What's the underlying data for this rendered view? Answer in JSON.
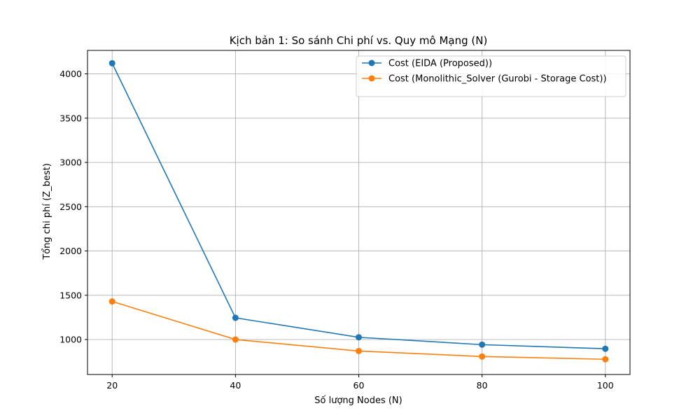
{
  "chart_data": {
    "type": "line",
    "title": "Kịch bản 1: So sánh Chi phí vs. Quy mô Mạng (N)",
    "xlabel": "Số lượng Nodes (N)",
    "ylabel": "Tổng chi phí (Z_best)",
    "x": [
      20,
      40,
      60,
      80,
      100
    ],
    "xlim": [
      16,
      104
    ],
    "ylim": [
      605,
      4265
    ],
    "xticks": [
      20,
      40,
      60,
      80,
      100
    ],
    "yticks": [
      1000,
      1500,
      2000,
      2500,
      3000,
      3500,
      4000
    ],
    "grid": true,
    "legend_position": "top-right",
    "series": [
      {
        "name": "Cost (EIDA (Proposed))",
        "color": "#1f77b4",
        "values": [
          4120,
          1245,
          1025,
          942,
          896
        ]
      },
      {
        "name": "Cost (Monolithic_Solver (Gurobi - Storage Cost))",
        "color": "#ff7f0e",
        "values": [
          1430,
          1000,
          870,
          808,
          777
        ]
      }
    ]
  }
}
